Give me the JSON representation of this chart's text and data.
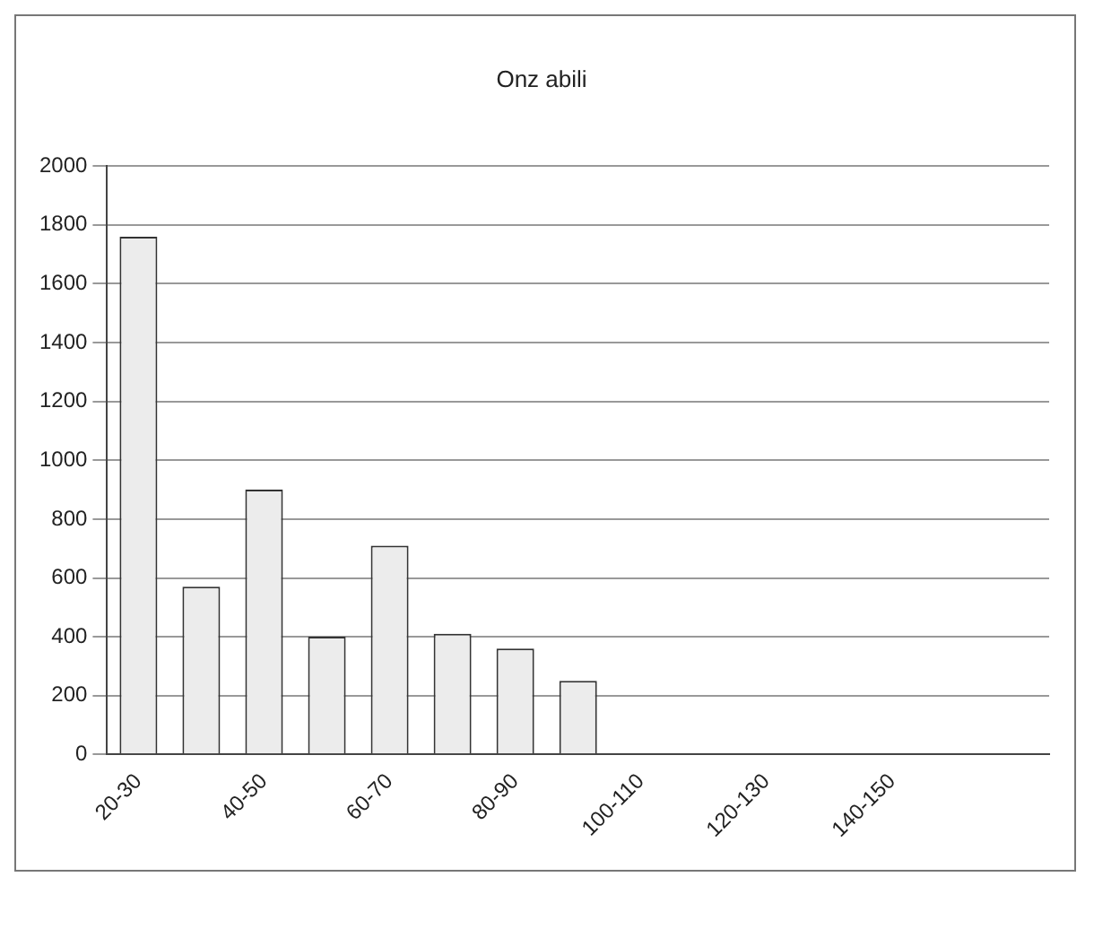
{
  "chart_data": {
    "type": "bar",
    "title": "Onz abili",
    "categories": [
      "20-30",
      null,
      "40-50",
      null,
      "60-70",
      null,
      "80-90",
      null,
      "100-110",
      null,
      "120-130",
      null,
      "140-150",
      null,
      null
    ],
    "values": [
      1760,
      570,
      900,
      400,
      710,
      410,
      360,
      250,
      0,
      0,
      0,
      0,
      0,
      0,
      0
    ],
    "color": "#ececec",
    "ylim": [
      0,
      2000
    ],
    "yticks": [
      0,
      200,
      400,
      600,
      800,
      1000,
      1200,
      1400,
      1600,
      1800,
      2000
    ],
    "grid": "y"
  }
}
